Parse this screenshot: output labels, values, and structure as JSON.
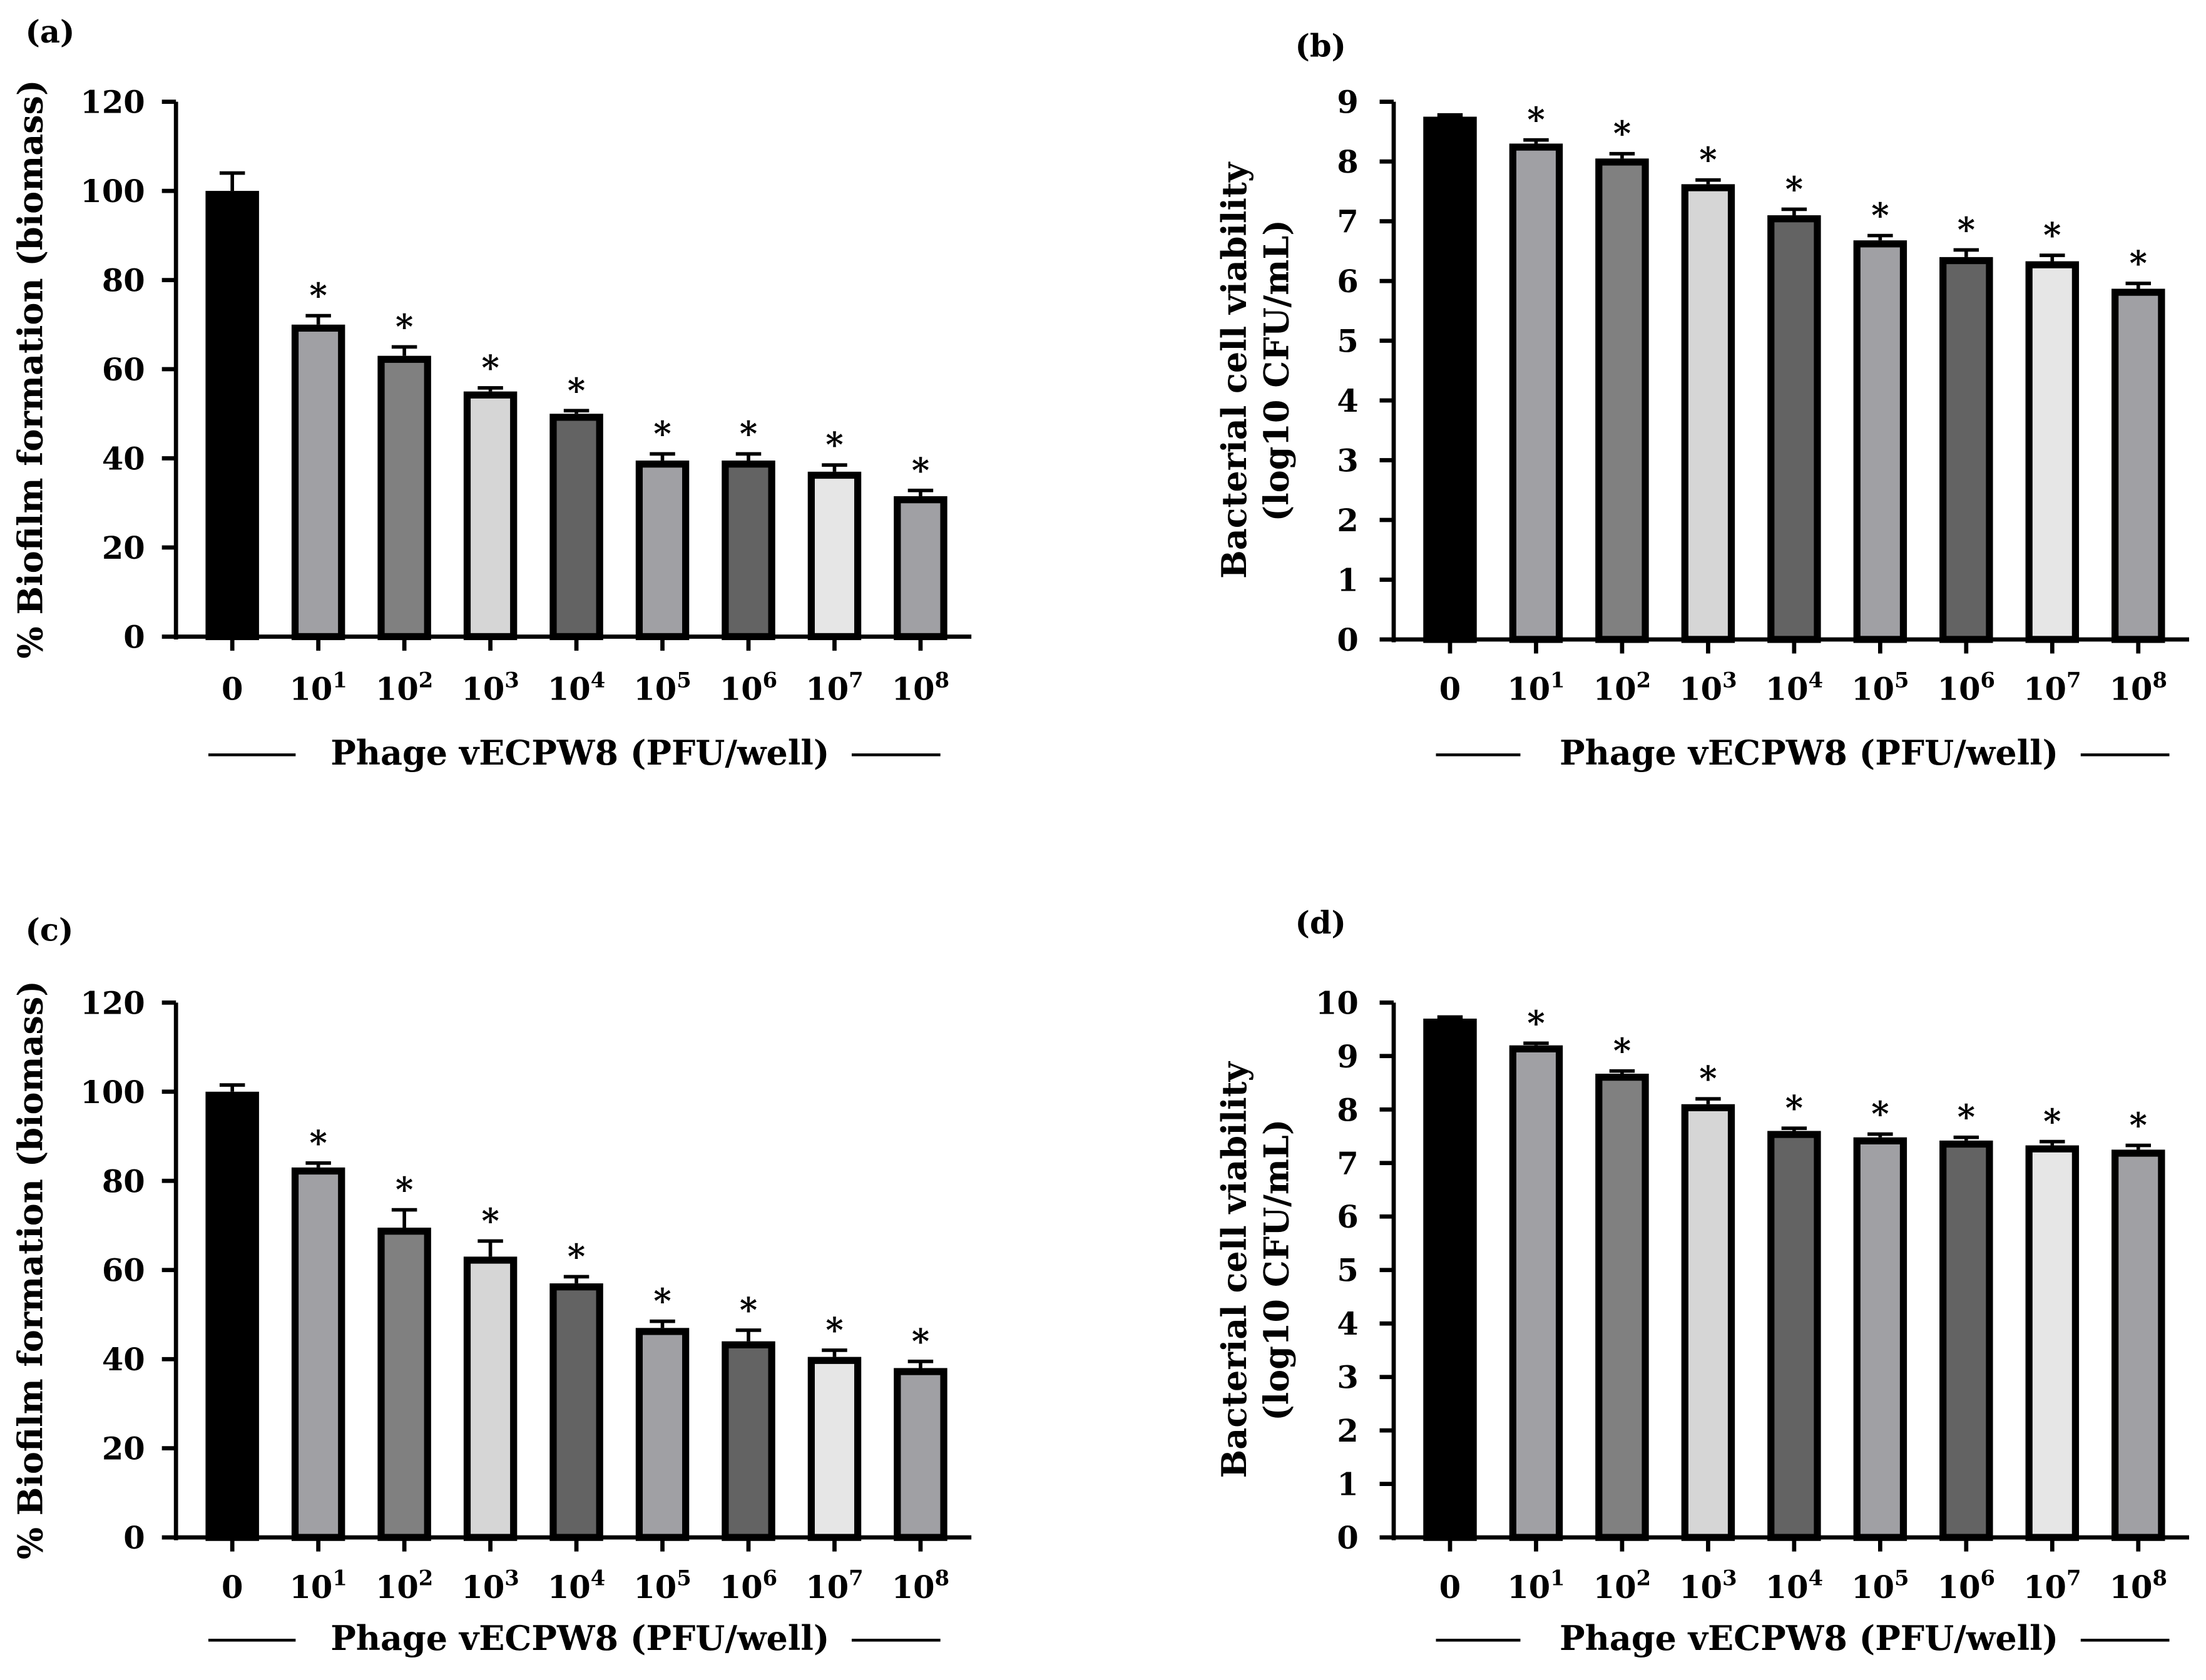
{
  "chart_data": [
    {
      "panel_label": "(a)",
      "type": "bar",
      "ylabel": "% Biofilm formation (biomass)",
      "xlabel": "Phage vECPW8 (PFU/well)",
      "categories": [
        "0",
        "10¹",
        "10²",
        "10³",
        "10⁴",
        "10⁵",
        "10⁶",
        "10⁷",
        "10⁸"
      ],
      "values": [
        100,
        70,
        63,
        55,
        50,
        39.5,
        39.5,
        37,
        31.5
      ],
      "errors": [
        4,
        2,
        2,
        0.8,
        0.7,
        1.5,
        1.5,
        1.5,
        1.3
      ],
      "significance": [
        "",
        "*",
        "*",
        "*",
        "*",
        "*",
        "*",
        "*",
        "*"
      ],
      "ylim": [
        0,
        120
      ],
      "yticks": [
        0,
        20,
        40,
        60,
        80,
        100,
        120
      ]
    },
    {
      "panel_label": "(b)",
      "type": "bar",
      "ylabel": [
        "Bacterial cell viability",
        "(log10 CFU/mL)"
      ],
      "xlabel": "Phage vECPW8 (PFU/well)",
      "categories": [
        "0",
        "10¹",
        "10²",
        "10³",
        "10⁴",
        "10⁵",
        "10⁶",
        "10⁷",
        "10⁸"
      ],
      "values": [
        8.75,
        8.3,
        8.05,
        7.62,
        7.1,
        6.68,
        6.4,
        6.33,
        5.87
      ],
      "errors": [
        0.03,
        0.06,
        0.08,
        0.07,
        0.1,
        0.08,
        0.12,
        0.1,
        0.09
      ],
      "significance": [
        "",
        "*",
        "*",
        "*",
        "*",
        "*",
        "*",
        "*",
        "*"
      ],
      "ylim": [
        0,
        9
      ],
      "yticks": [
        0,
        1,
        2,
        3,
        4,
        5,
        6,
        7,
        8,
        9
      ]
    },
    {
      "panel_label": "(c)",
      "type": "bar",
      "ylabel": "% Biofilm formation (biomass)",
      "xlabel": "Phage vECPW8 (PFU/well)",
      "categories": [
        "0",
        "10¹",
        "10²",
        "10³",
        "10⁴",
        "10⁵",
        "10⁶",
        "10⁷",
        "10⁸"
      ],
      "values": [
        100,
        83,
        69.5,
        63,
        57,
        47,
        44,
        40.5,
        38
      ],
      "errors": [
        1.5,
        1,
        4,
        3.5,
        1.5,
        1.5,
        2.5,
        1.5,
        1.5
      ],
      "significance": [
        "",
        "*",
        "*",
        "*",
        "*",
        "*",
        "*",
        "*",
        "*"
      ],
      "ylim": [
        0,
        120
      ],
      "yticks": [
        0,
        20,
        40,
        60,
        80,
        100,
        120
      ]
    },
    {
      "panel_label": "(d)",
      "type": "bar",
      "ylabel": [
        "Bacterial cell viability",
        "(log10 CFU/mL)"
      ],
      "xlabel": "Phage vECPW8 (PFU/well)",
      "categories": [
        "0",
        "10¹",
        "10²",
        "10³",
        "10⁴",
        "10⁵",
        "10⁶",
        "10⁷",
        "10⁸"
      ],
      "values": [
        9.7,
        9.2,
        8.67,
        8.1,
        7.6,
        7.48,
        7.42,
        7.33,
        7.25
      ],
      "errors": [
        0.03,
        0.04,
        0.05,
        0.1,
        0.05,
        0.06,
        0.06,
        0.07,
        0.08
      ],
      "significance": [
        "",
        "*",
        "*",
        "*",
        "*",
        "*",
        "*",
        "*",
        "*"
      ],
      "ylim": [
        0,
        10
      ],
      "yticks": [
        0,
        1,
        2,
        3,
        4,
        5,
        6,
        7,
        8,
        9,
        10
      ]
    }
  ],
  "bar_colors": [
    "#000000",
    "#a0a0a4",
    "#808080",
    "#d6d6d6",
    "#636363",
    "#a0a0a4",
    "#636363",
    "#e6e6e6",
    "#a0a0a4"
  ]
}
